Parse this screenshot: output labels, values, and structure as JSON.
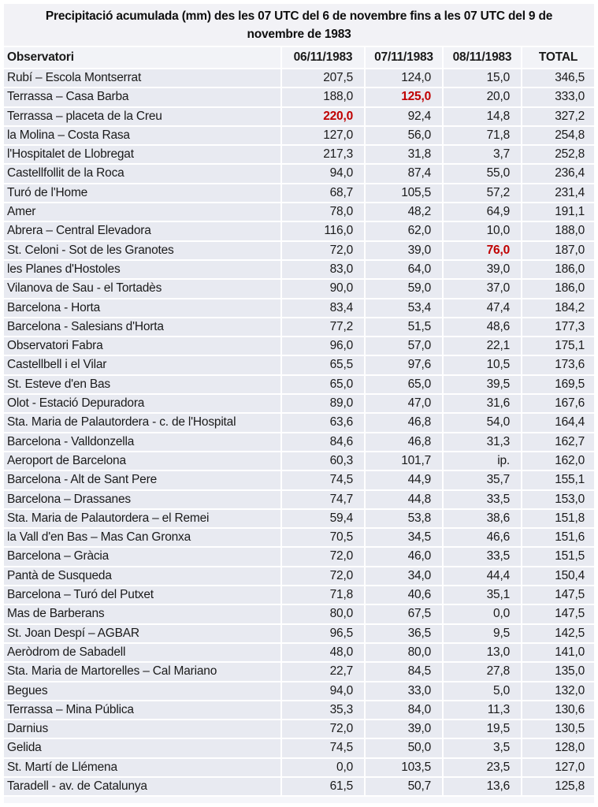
{
  "title": {
    "line1": "Precipitació acumulada (mm) des les 07 UTC del 6 de novembre fins a les 07 UTC del 9 de",
    "line2": "novembre de 1983"
  },
  "table": {
    "header": {
      "observatory": "Observatori",
      "day1": "06/11/1983",
      "day2": "07/11/1983",
      "day3": "08/11/1983",
      "total": "TOTAL"
    },
    "rows": [
      {
        "name": "Rubí – Escola  Montserrat",
        "values": [
          "207,5",
          "124,0",
          "15,0",
          "346,5"
        ],
        "red_value_index": null
      },
      {
        "name": "Terrassa – Casa Barba",
        "values": [
          "188,0",
          "125,0",
          "20,0",
          "333,0"
        ],
        "red_value_index": 1
      },
      {
        "name": "Terrassa – placeta de la Creu",
        "values": [
          "220,0",
          "92,4",
          "14,8",
          "327,2"
        ],
        "red_value_index": 0
      },
      {
        "name": "la Molina – Costa Rasa",
        "values": [
          "127,0",
          "56,0",
          "71,8",
          "254,8"
        ],
        "red_value_index": null
      },
      {
        "name": "l'Hospitalet de Llobregat",
        "values": [
          "217,3",
          "31,8",
          "3,7",
          "252,8"
        ],
        "red_value_index": null
      },
      {
        "name": "Castellfollit de la Roca",
        "values": [
          "94,0",
          "87,4",
          "55,0",
          "236,4"
        ],
        "red_value_index": null
      },
      {
        "name": "Turó de l'Home",
        "values": [
          "68,7",
          "105,5",
          "57,2",
          "231,4"
        ],
        "red_value_index": null
      },
      {
        "name": "Amer",
        "values": [
          "78,0",
          "48,2",
          "64,9",
          "191,1"
        ],
        "red_value_index": null
      },
      {
        "name": "Abrera – Central Elevadora",
        "values": [
          "116,0",
          "62,0",
          "10,0",
          "188,0"
        ],
        "red_value_index": null
      },
      {
        "name": "St. Celoni - Sot de les Granotes",
        "values": [
          "72,0",
          "39,0",
          "76,0",
          "187,0"
        ],
        "red_value_index": 2
      },
      {
        "name": "les Planes d'Hostoles",
        "values": [
          "83,0",
          "64,0",
          "39,0",
          "186,0"
        ],
        "red_value_index": null
      },
      {
        "name": "Vilanova de Sau - el Tortadès",
        "values": [
          "90,0",
          "59,0",
          "37,0",
          "186,0"
        ],
        "red_value_index": null
      },
      {
        "name": "Barcelona - Horta",
        "values": [
          "83,4",
          "53,4",
          "47,4",
          "184,2"
        ],
        "red_value_index": null
      },
      {
        "name": "Barcelona - Salesians d'Horta",
        "values": [
          "77,2",
          "51,5",
          "48,6",
          "177,3"
        ],
        "red_value_index": null
      },
      {
        "name": "Observatori Fabra",
        "values": [
          "96,0",
          "57,0",
          "22,1",
          "175,1"
        ],
        "red_value_index": null
      },
      {
        "name": "Castellbell i el Vilar",
        "values": [
          "65,5",
          "97,6",
          "10,5",
          "173,6"
        ],
        "red_value_index": null
      },
      {
        "name": "St. Esteve d'en Bas",
        "values": [
          "65,0",
          "65,0",
          "39,5",
          "169,5"
        ],
        "red_value_index": null
      },
      {
        "name": "Olot - Estació Depuradora",
        "values": [
          "89,0",
          "47,0",
          "31,6",
          "167,6"
        ],
        "red_value_index": null
      },
      {
        "name": "Sta. Maria de Palautordera - c. de l'Hospital",
        "values": [
          "63,6",
          "46,8",
          "54,0",
          "164,4"
        ],
        "red_value_index": null
      },
      {
        "name": "Barcelona - Valldonzella",
        "values": [
          "84,6",
          "46,8",
          "31,3",
          "162,7"
        ],
        "red_value_index": null
      },
      {
        "name": "Aeroport de Barcelona",
        "values": [
          "60,3",
          "101,7",
          "ip.",
          "162,0"
        ],
        "red_value_index": null
      },
      {
        "name": "Barcelona - Alt de Sant Pere",
        "values": [
          "74,5",
          "44,9",
          "35,7",
          "155,1"
        ],
        "red_value_index": null
      },
      {
        "name": "Barcelona – Drassanes",
        "values": [
          "74,7",
          "44,8",
          "33,5",
          "153,0"
        ],
        "red_value_index": null
      },
      {
        "name": "Sta. Maria de Palautordera – el Remei",
        "values": [
          "59,4",
          "53,8",
          "38,6",
          "151,8"
        ],
        "red_value_index": null
      },
      {
        "name": "la Vall d'en Bas – Mas Can Gronxa",
        "values": [
          "70,5",
          "34,5",
          "46,6",
          "151,6"
        ],
        "red_value_index": null
      },
      {
        "name": "Barcelona – Gràcia",
        "values": [
          "72,0",
          "46,0",
          "33,5",
          "151,5"
        ],
        "red_value_index": null
      },
      {
        "name": "Pantà de Susqueda",
        "values": [
          "72,0",
          "34,0",
          "44,4",
          "150,4"
        ],
        "red_value_index": null
      },
      {
        "name": "Barcelona – Turó del Putxet",
        "values": [
          "71,8",
          "40,6",
          "35,1",
          "147,5"
        ],
        "red_value_index": null
      },
      {
        "name": "Mas de Barberans",
        "values": [
          "80,0",
          "67,5",
          "0,0",
          "147,5"
        ],
        "red_value_index": null
      },
      {
        "name": "St. Joan Despí – AGBAR",
        "values": [
          "96,5",
          "36,5",
          "9,5",
          "142,5"
        ],
        "red_value_index": null
      },
      {
        "name": "Aeròdrom de Sabadell",
        "values": [
          "48,0",
          "80,0",
          "13,0",
          "141,0"
        ],
        "red_value_index": null
      },
      {
        "name": "Sta. Maria de Martorelles – Cal Mariano",
        "values": [
          "22,7",
          "84,5",
          "27,8",
          "135,0"
        ],
        "red_value_index": null
      },
      {
        "name": "Begues",
        "values": [
          "94,0",
          "33,0",
          "5,0",
          "132,0"
        ],
        "red_value_index": null
      },
      {
        "name": "Terrassa – Mina Pública",
        "values": [
          "35,3",
          "84,0",
          "11,3",
          "130,6"
        ],
        "red_value_index": null
      },
      {
        "name": "Darnius",
        "values": [
          "72,0",
          "39,0",
          "19,5",
          "130,5"
        ],
        "red_value_index": null
      },
      {
        "name": "Gelida",
        "values": [
          "74,5",
          "50,0",
          "3,5",
          "128,0"
        ],
        "red_value_index": null
      },
      {
        "name": "St. Martí de Llémena",
        "values": [
          "0,0",
          "103,5",
          "23,5",
          "127,0"
        ],
        "red_value_index": null
      },
      {
        "name": "Taradell - av. de Catalunya",
        "values": [
          "61,5",
          "50,7",
          "13,6",
          "125,8"
        ],
        "red_value_index": null
      }
    ]
  },
  "colors": {
    "highlight_red": "#C00000",
    "row_background": "#E8EAF1",
    "header_background": "#F2F3F7",
    "title_background": "#F2F2F6",
    "text": "#1A1A1A"
  }
}
